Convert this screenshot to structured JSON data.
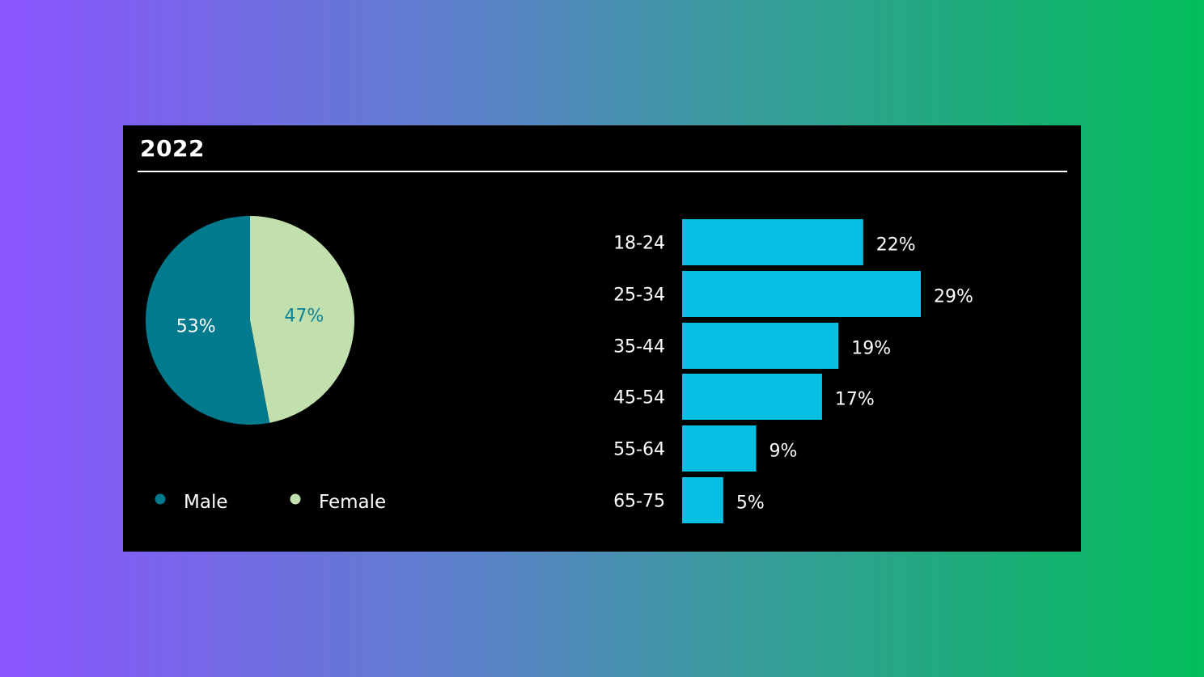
{
  "card": {
    "title": "2022"
  },
  "chart_data": [
    {
      "type": "pie",
      "slices": [
        {
          "label": "Male",
          "value": 53,
          "value_label": "53%",
          "color": "#007a8c",
          "label_color": "#ffffff"
        },
        {
          "label": "Female",
          "value": 47,
          "value_label": "47%",
          "color": "#c1e0ae",
          "label_color": "#118394"
        }
      ],
      "legend": [
        "Male",
        "Female"
      ],
      "legend_position": "bottom"
    },
    {
      "type": "bar",
      "orientation": "horizontal",
      "categories": [
        "18-24",
        "25-34",
        "35-44",
        "45-54",
        "55-64",
        "65-75"
      ],
      "values": [
        22,
        29,
        19,
        17,
        9,
        5
      ],
      "value_labels": [
        "22%",
        "29%",
        "19%",
        "17%",
        "9%",
        "5%"
      ],
      "color": "#07bfe2",
      "xlim": [
        0,
        29
      ]
    }
  ]
}
